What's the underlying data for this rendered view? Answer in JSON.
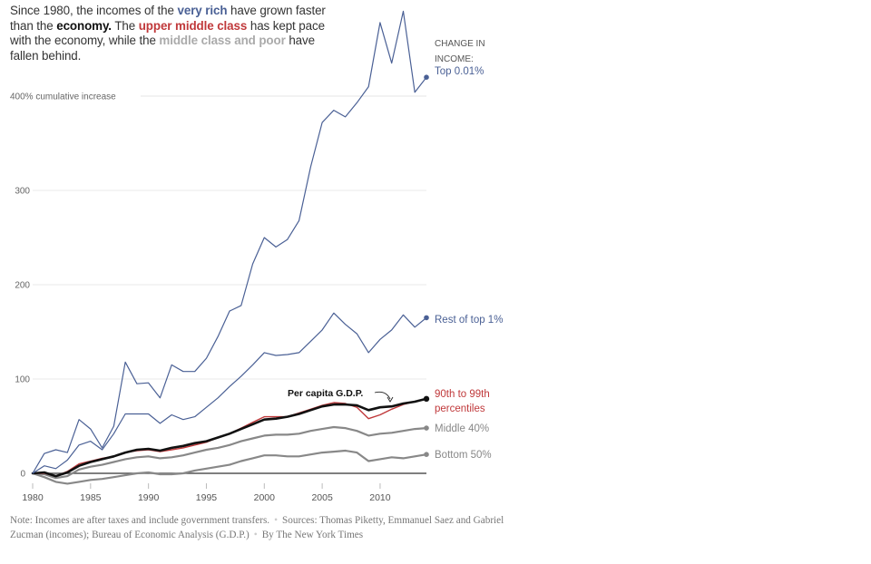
{
  "headline": {
    "parts": [
      {
        "text": "Since 1980, the incomes of the ",
        "style": "plain"
      },
      {
        "text": "very rich",
        "style": "rich"
      },
      {
        "text": " have grown faster than the ",
        "style": "plain"
      },
      {
        "text": "economy.",
        "style": "econ"
      },
      {
        "text": " The ",
        "style": "plain"
      },
      {
        "text": "upper middle class",
        "style": "upper"
      },
      {
        "text": " has kept pace with the economy, while the ",
        "style": "plain"
      },
      {
        "text": "middle class and poor",
        "style": "mid"
      },
      {
        "text": " have fallen behind.",
        "style": "plain"
      }
    ]
  },
  "footer": {
    "note": "Note: Incomes are after taxes and include government transfers.",
    "sources": "Sources: Thomas Piketty, Emmanuel Saez and Gabriel Zucman (incomes); Bureau of Economic Analysis (G.D.P.)",
    "credit": "By The New York Times",
    "separator": "•"
  },
  "chart_data": {
    "type": "line",
    "title": "Since 1980, the incomes of the very rich have grown faster than the economy.",
    "xlabel": "",
    "ylabel": "cumulative increase (%)",
    "xlim": [
      1980,
      2014
    ],
    "ylim": [
      0,
      400
    ],
    "grid": true,
    "x_ticks": [
      1980,
      1985,
      1990,
      1995,
      2000,
      2005,
      2010
    ],
    "y_ticks": [
      {
        "value": 0,
        "label": "0"
      },
      {
        "value": 100,
        "label": "100"
      },
      {
        "value": 200,
        "label": "200"
      },
      {
        "value": 300,
        "label": "300"
      },
      {
        "value": 400,
        "label": "400% cumulative increase"
      }
    ],
    "legend_header": [
      "CHANGE IN",
      "INCOME:"
    ],
    "x": [
      1980,
      1981,
      1982,
      1983,
      1984,
      1985,
      1986,
      1987,
      1988,
      1989,
      1990,
      1991,
      1992,
      1993,
      1994,
      1995,
      1996,
      1997,
      1998,
      1999,
      2000,
      2001,
      2002,
      2003,
      2004,
      2005,
      2006,
      2007,
      2008,
      2009,
      2010,
      2011,
      2012,
      2013,
      2014
    ],
    "series": [
      {
        "name": "Top 0.01%",
        "label": [
          "Top 0.01%"
        ],
        "color": "#4a6095",
        "values": [
          0,
          21,
          25,
          22,
          57,
          47,
          27,
          50,
          118,
          95,
          96,
          80,
          115,
          108,
          108,
          122,
          145,
          172,
          178,
          222,
          250,
          240,
          248,
          268,
          325,
          372,
          385,
          378,
          393,
          410,
          478,
          435,
          490,
          404,
          420
        ]
      },
      {
        "name": "Rest of top 1%",
        "label": [
          "Rest of top 1%"
        ],
        "color": "#4a6095",
        "values": [
          0,
          8,
          5,
          14,
          30,
          34,
          25,
          42,
          63,
          63,
          63,
          53,
          62,
          57,
          60,
          70,
          80,
          92,
          103,
          115,
          128,
          125,
          126,
          128,
          140,
          152,
          170,
          158,
          148,
          128,
          142,
          152,
          168,
          155,
          165
        ]
      },
      {
        "name": "90th to 99th percentiles",
        "label": [
          "90th to 99th",
          "percentiles"
        ],
        "color": "#c0393b",
        "values": [
          0,
          0,
          -3,
          2,
          10,
          13,
          16,
          18,
          22,
          24,
          25,
          23,
          25,
          27,
          30,
          33,
          38,
          42,
          48,
          54,
          60,
          60,
          60,
          64,
          68,
          72,
          75,
          74,
          70,
          58,
          62,
          68,
          73,
          76,
          79
        ]
      },
      {
        "name": "Per capita G.D.P.",
        "label": [
          "Per capita G.D.P."
        ],
        "color": "#111111",
        "values": [
          0,
          1,
          -3,
          1,
          8,
          12,
          15,
          18,
          22,
          25,
          26,
          24,
          27,
          29,
          32,
          34,
          38,
          42,
          47,
          52,
          57,
          58,
          60,
          63,
          67,
          71,
          73,
          73,
          72,
          67,
          70,
          71,
          74,
          76,
          79
        ]
      },
      {
        "name": "Middle 40%",
        "label": [
          "Middle 40%"
        ],
        "color": "#888888",
        "values": [
          0,
          -1,
          -5,
          -3,
          4,
          7,
          9,
          12,
          15,
          17,
          18,
          16,
          17,
          19,
          22,
          25,
          27,
          30,
          34,
          37,
          40,
          41,
          41,
          42,
          45,
          47,
          49,
          48,
          45,
          40,
          42,
          43,
          45,
          47,
          48
        ]
      },
      {
        "name": "Bottom 50%",
        "label": [
          "Bottom 50%"
        ],
        "color": "#888888",
        "values": [
          0,
          -4,
          -9,
          -11,
          -9,
          -7,
          -6,
          -4,
          -2,
          0,
          1,
          -1,
          -1,
          0,
          3,
          5,
          7,
          9,
          13,
          16,
          19,
          19,
          18,
          18,
          20,
          22,
          23,
          24,
          22,
          13,
          15,
          17,
          16,
          18,
          20
        ]
      }
    ],
    "annotations": [
      {
        "text": "Per capita G.D.P.",
        "points_to": "Per capita G.D.P.",
        "at_year": 2010
      }
    ]
  }
}
